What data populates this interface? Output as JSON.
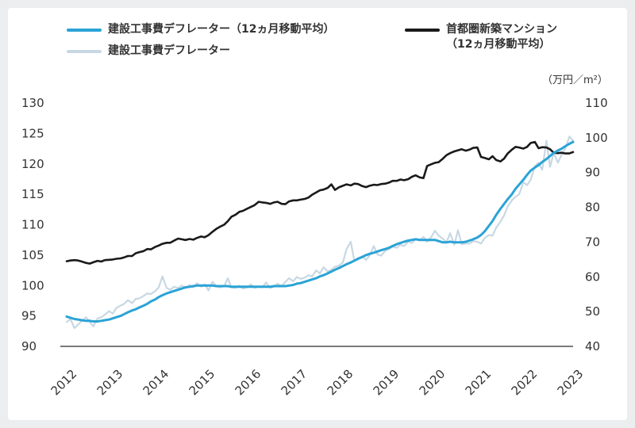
{
  "legend": {
    "smoothed": {
      "label": "建設工事費デフレーター（12ヵ月移動平均）",
      "color": "#2aa3d6"
    },
    "raw": {
      "label": "建設工事費デフレーター",
      "color": "#c7d8e3"
    },
    "condo": {
      "label_line1": "首都圏新築マンション",
      "label_line2": "（12ヵ月移動平均）",
      "color": "#1a1a1a"
    }
  },
  "chart_data": {
    "type": "line",
    "title": "",
    "right_unit": "（万円／m²）",
    "x_range": [
      2012,
      2023
    ],
    "x_ticks": [
      "2012",
      "2013",
      "2014",
      "2015",
      "2016",
      "2017",
      "2018",
      "2019",
      "2020",
      "2021",
      "2022",
      "2023"
    ],
    "left_axis": {
      "range": [
        90,
        130
      ],
      "ticks": [
        "90",
        "95",
        "100",
        "105",
        "110",
        "115",
        "120",
        "125",
        "130"
      ]
    },
    "right_axis": {
      "range": [
        40,
        110
      ],
      "ticks": [
        "40",
        "50",
        "60",
        "70",
        "80",
        "90",
        "100",
        "110"
      ]
    },
    "grid": false,
    "series": [
      {
        "name": "建設工事費デフレーター",
        "axis": "left",
        "color": "#c7d8e3",
        "x": [
          2012.0,
          2012.08,
          2012.17,
          2012.25,
          2012.33,
          2012.42,
          2012.5,
          2012.58,
          2012.67,
          2012.75,
          2012.83,
          2012.92,
          2013.0,
          2013.08,
          2013.17,
          2013.25,
          2013.33,
          2013.42,
          2013.5,
          2013.58,
          2013.67,
          2013.75,
          2013.83,
          2013.92,
          2014.0,
          2014.08,
          2014.17,
          2014.25,
          2014.33,
          2014.42,
          2014.5,
          2014.58,
          2014.67,
          2014.75,
          2014.83,
          2014.92,
          2015.0,
          2015.08,
          2015.17,
          2015.25,
          2015.33,
          2015.42,
          2015.5,
          2015.58,
          2015.67,
          2015.75,
          2015.83,
          2015.92,
          2016.0,
          2016.08,
          2016.17,
          2016.25,
          2016.33,
          2016.42,
          2016.5,
          2016.58,
          2016.67,
          2016.75,
          2016.83,
          2016.92,
          2017.0,
          2017.08,
          2017.17,
          2017.25,
          2017.33,
          2017.42,
          2017.5,
          2017.58,
          2017.67,
          2017.75,
          2017.83,
          2017.92,
          2018.0,
          2018.08,
          2018.17,
          2018.25,
          2018.33,
          2018.42,
          2018.5,
          2018.58,
          2018.67,
          2018.75,
          2018.83,
          2018.92,
          2019.0,
          2019.08,
          2019.17,
          2019.25,
          2019.33,
          2019.42,
          2019.5,
          2019.58,
          2019.67,
          2019.75,
          2019.83,
          2019.92,
          2020.0,
          2020.08,
          2020.17,
          2020.25,
          2020.33,
          2020.42,
          2020.5,
          2020.58,
          2020.67,
          2020.75,
          2020.83,
          2020.92,
          2021.0,
          2021.08,
          2021.17,
          2021.25,
          2021.33,
          2021.42,
          2021.5,
          2021.58,
          2021.67,
          2021.75,
          2021.83,
          2021.92,
          2022.0,
          2022.08,
          2022.17,
          2022.25,
          2022.33,
          2022.42,
          2022.5,
          2022.58,
          2022.67,
          2022.75,
          2022.83,
          2022.92,
          2023.0
        ],
        "values": [
          94.0,
          94.5,
          93.0,
          93.6,
          94.2,
          94.8,
          94.0,
          93.3,
          94.6,
          94.8,
          95.2,
          95.8,
          95.4,
          96.3,
          96.7,
          97.0,
          97.6,
          97.1,
          97.8,
          97.9,
          98.3,
          98.7,
          98.6,
          99.1,
          99.7,
          101.5,
          99.6,
          99.3,
          99.8,
          99.6,
          100.0,
          99.6,
          100.1,
          99.7,
          100.4,
          99.8,
          100.2,
          99.2,
          100.6,
          99.9,
          99.7,
          99.9,
          101.2,
          99.7,
          99.6,
          100.0,
          99.5,
          99.7,
          100.2,
          99.6,
          99.8,
          99.7,
          100.5,
          99.6,
          99.8,
          100.3,
          99.9,
          100.6,
          101.2,
          100.7,
          101.4,
          101.1,
          101.3,
          101.7,
          101.5,
          102.5,
          102.0,
          103.0,
          102.3,
          102.6,
          103.1,
          103.3,
          103.8,
          106.0,
          107.2,
          104.0,
          104.5,
          104.8,
          104.2,
          104.9,
          106.5,
          105.1,
          104.9,
          105.7,
          106.0,
          106.4,
          106.2,
          106.7,
          106.5,
          107.2,
          107.0,
          107.6,
          107.4,
          108.0,
          107.2,
          108.0,
          109.0,
          108.2,
          107.7,
          107.1,
          108.6,
          106.7,
          109.1,
          106.8,
          106.9,
          106.9,
          107.3,
          107.2,
          106.9,
          107.8,
          108.3,
          108.2,
          109.5,
          110.5,
          111.5,
          113.0,
          114.0,
          114.6,
          115.0,
          117.0,
          116.5,
          117.4,
          119.6,
          120.2,
          119.0,
          123.8,
          119.5,
          121.8,
          120.2,
          121.5,
          122.5,
          124.5,
          123.8
        ],
        "smoothed": [
          94.9,
          94.7,
          94.5,
          94.4,
          94.3,
          94.2,
          94.2,
          94.1,
          94.1,
          94.2,
          94.3,
          94.4,
          94.6,
          94.8,
          95.0,
          95.3,
          95.6,
          95.9,
          96.1,
          96.4,
          96.7,
          97.0,
          97.4,
          97.7,
          98.1,
          98.4,
          98.7,
          98.9,
          99.1,
          99.3,
          99.5,
          99.7,
          99.8,
          99.9,
          100.0,
          100.0,
          100.0,
          100.0,
          100.0,
          99.9,
          99.9,
          99.9,
          99.9,
          99.8,
          99.8,
          99.8,
          99.8,
          99.8,
          99.8,
          99.8,
          99.8,
          99.8,
          99.8,
          99.8,
          99.9,
          99.9,
          99.9,
          99.9,
          100.0,
          100.1,
          100.3,
          100.4,
          100.6,
          100.8,
          101.0,
          101.2,
          101.5,
          101.7,
          102.0,
          102.3,
          102.6,
          102.9,
          103.2,
          103.5,
          103.8,
          104.1,
          104.4,
          104.7,
          105.0,
          105.2,
          105.4,
          105.6,
          105.8,
          106.0,
          106.2,
          106.5,
          106.8,
          107.0,
          107.2,
          107.4,
          107.5,
          107.6,
          107.5,
          107.5,
          107.5,
          107.5,
          107.5,
          107.3,
          107.1,
          107.1,
          107.2,
          107.1,
          107.1,
          107.1,
          107.2,
          107.4,
          107.6,
          107.9,
          108.3,
          108.9,
          109.8,
          110.6,
          111.6,
          112.6,
          113.4,
          114.2,
          115.0,
          115.9,
          116.6,
          117.4,
          118.2,
          118.9,
          119.4,
          119.8,
          120.3,
          120.8,
          121.3,
          121.8,
          122.2,
          122.5,
          122.9,
          123.3,
          123.6
        ]
      },
      {
        "name": "首都圏新築マンション",
        "axis": "right",
        "color": "#1a1a1a",
        "x": [
          2012.0,
          2012.08,
          2012.17,
          2012.25,
          2012.33,
          2012.42,
          2012.5,
          2012.58,
          2012.67,
          2012.75,
          2012.83,
          2012.92,
          2013.0,
          2013.08,
          2013.17,
          2013.25,
          2013.33,
          2013.42,
          2013.5,
          2013.58,
          2013.67,
          2013.75,
          2013.83,
          2013.92,
          2014.0,
          2014.08,
          2014.17,
          2014.25,
          2014.33,
          2014.42,
          2014.5,
          2014.58,
          2014.67,
          2014.75,
          2014.83,
          2014.92,
          2015.0,
          2015.08,
          2015.17,
          2015.25,
          2015.33,
          2015.42,
          2015.5,
          2015.58,
          2015.67,
          2015.75,
          2015.83,
          2015.92,
          2016.0,
          2016.08,
          2016.17,
          2016.25,
          2016.33,
          2016.42,
          2016.5,
          2016.58,
          2016.67,
          2016.75,
          2016.83,
          2016.92,
          2017.0,
          2017.08,
          2017.17,
          2017.25,
          2017.33,
          2017.42,
          2017.5,
          2017.58,
          2017.67,
          2017.75,
          2017.83,
          2017.92,
          2018.0,
          2018.08,
          2018.17,
          2018.25,
          2018.33,
          2018.42,
          2018.5,
          2018.58,
          2018.67,
          2018.75,
          2018.83,
          2018.92,
          2019.0,
          2019.08,
          2019.17,
          2019.25,
          2019.33,
          2019.42,
          2019.5,
          2019.58,
          2019.67,
          2019.75,
          2019.83,
          2019.92,
          2020.0,
          2020.08,
          2020.17,
          2020.25,
          2020.33,
          2020.42,
          2020.5,
          2020.58,
          2020.67,
          2020.75,
          2020.83,
          2020.92,
          2021.0,
          2021.08,
          2021.17,
          2021.25,
          2021.33,
          2021.42,
          2021.5,
          2021.58,
          2021.67,
          2021.75,
          2021.83,
          2021.92,
          2022.0,
          2022.08,
          2022.17,
          2022.25,
          2022.33,
          2022.42,
          2022.5,
          2022.58,
          2022.67,
          2022.75,
          2022.83,
          2022.92,
          2023.0
        ],
        "values": [
          64.5,
          64.7,
          64.8,
          64.7,
          64.4,
          64.0,
          63.8,
          64.2,
          64.6,
          64.4,
          64.8,
          64.9,
          65.0,
          65.2,
          65.3,
          65.6,
          66.0,
          66.0,
          66.8,
          67.1,
          67.4,
          68.0,
          67.9,
          68.6,
          69.0,
          69.5,
          69.8,
          69.8,
          70.4,
          71.0,
          70.8,
          70.6,
          70.9,
          70.7,
          71.2,
          71.6,
          71.4,
          72.0,
          73.0,
          73.8,
          74.4,
          75.0,
          76.0,
          77.3,
          77.9,
          78.7,
          79.0,
          79.6,
          80.1,
          80.6,
          81.6,
          81.4,
          81.3,
          81.0,
          81.4,
          81.6,
          81.0,
          80.9,
          81.7,
          82.0,
          82.0,
          82.2,
          82.4,
          82.8,
          83.6,
          84.3,
          84.9,
          85.1,
          85.6,
          86.6,
          85.0,
          85.8,
          86.2,
          86.6,
          86.3,
          86.8,
          86.7,
          86.1,
          85.8,
          86.2,
          86.5,
          86.4,
          86.7,
          86.8,
          87.1,
          87.6,
          87.6,
          88.0,
          87.8,
          88.1,
          88.8,
          89.2,
          88.6,
          88.4,
          91.9,
          92.4,
          92.8,
          93.0,
          94.0,
          95.0,
          95.6,
          96.1,
          96.4,
          96.7,
          96.3,
          96.6,
          97.1,
          97.2,
          94.5,
          94.2,
          93.8,
          94.7,
          93.6,
          93.2,
          94.0,
          95.5,
          96.6,
          97.4,
          97.2,
          96.9,
          97.4,
          98.5,
          98.8,
          97.0,
          97.3,
          97.2,
          96.7,
          95.7,
          95.6,
          95.7,
          95.5,
          95.5,
          95.9
        ],
        "smoothed": [
          64.5,
          64.7,
          64.8,
          64.7,
          64.4,
          64.0,
          63.8,
          64.2,
          64.6,
          64.4,
          64.8,
          64.9,
          65.0,
          65.2,
          65.3,
          65.6,
          66.0,
          66.0,
          66.8,
          67.1,
          67.4,
          68.0,
          67.9,
          68.6,
          69.0,
          69.5,
          69.8,
          69.8,
          70.4,
          71.0,
          70.8,
          70.6,
          70.9,
          70.7,
          71.2,
          71.6,
          71.4,
          72.0,
          73.0,
          73.8,
          74.4,
          75.0,
          76.0,
          77.3,
          77.9,
          78.7,
          79.0,
          79.6,
          80.1,
          80.6,
          81.6,
          81.4,
          81.3,
          81.0,
          81.4,
          81.6,
          81.0,
          80.9,
          81.7,
          82.0,
          82.0,
          82.2,
          82.4,
          82.8,
          83.6,
          84.3,
          84.9,
          85.1,
          85.6,
          86.6,
          85.0,
          85.8,
          86.2,
          86.6,
          86.3,
          86.8,
          86.7,
          86.1,
          85.8,
          86.2,
          86.5,
          86.4,
          86.7,
          86.8,
          87.1,
          87.6,
          87.6,
          88.0,
          87.8,
          88.1,
          88.8,
          89.2,
          88.6,
          88.4,
          91.9,
          92.4,
          92.8,
          93.0,
          94.0,
          95.0,
          95.6,
          96.1,
          96.4,
          96.7,
          96.3,
          96.6,
          97.1,
          97.2,
          94.5,
          94.2,
          93.8,
          94.7,
          93.6,
          93.2,
          94.0,
          95.5,
          96.6,
          97.4,
          97.2,
          96.9,
          97.4,
          98.5,
          98.8,
          97.0,
          97.3,
          97.2,
          96.7,
          95.7,
          95.6,
          95.7,
          95.5,
          95.5,
          95.9
        ]
      }
    ]
  }
}
